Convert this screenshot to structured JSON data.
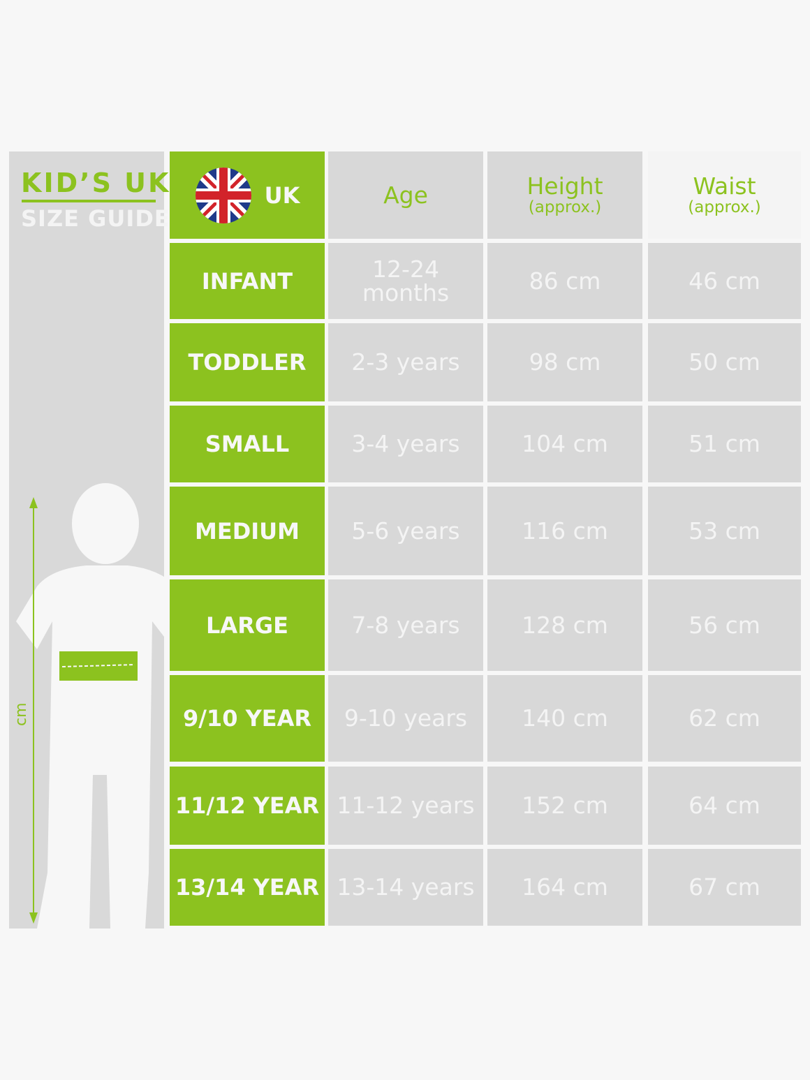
{
  "title": {
    "line1": "KID’S UK",
    "line2": "SIZE GUIDE"
  },
  "axis_label": "cm",
  "header": {
    "uk": "UK",
    "age": "Age",
    "height": "Height",
    "height_sub": "(approx.)",
    "waist": "Waist",
    "waist_sub": "(approx.)"
  },
  "colors": {
    "accent": "#8cc21f",
    "cell": "#d8d8d8",
    "text": "#f4f4f4"
  },
  "rows": [
    {
      "size": "INFANT",
      "age": "12-24 months",
      "height": "86 cm",
      "waist": "46 cm"
    },
    {
      "size": "TODDLER",
      "age": "2-3 years",
      "height": "98 cm",
      "waist": "50 cm"
    },
    {
      "size": "SMALL",
      "age": "3-4 years",
      "height": "104 cm",
      "waist": "51 cm"
    },
    {
      "size": "MEDIUM",
      "age": "5-6 years",
      "height": "116 cm",
      "waist": "53 cm"
    },
    {
      "size": "LARGE",
      "age": "7-8 years",
      "height": "128 cm",
      "waist": "56 cm"
    },
    {
      "size": "9/10 YEAR",
      "age": "9-10 years",
      "height": "140 cm",
      "waist": "62 cm"
    },
    {
      "size": "11/12 YEAR",
      "age": "11-12 years",
      "height": "152 cm",
      "waist": "64 cm"
    },
    {
      "size": "13/14 YEAR",
      "age": "13-14 years",
      "height": "164 cm",
      "waist": "67 cm"
    }
  ]
}
